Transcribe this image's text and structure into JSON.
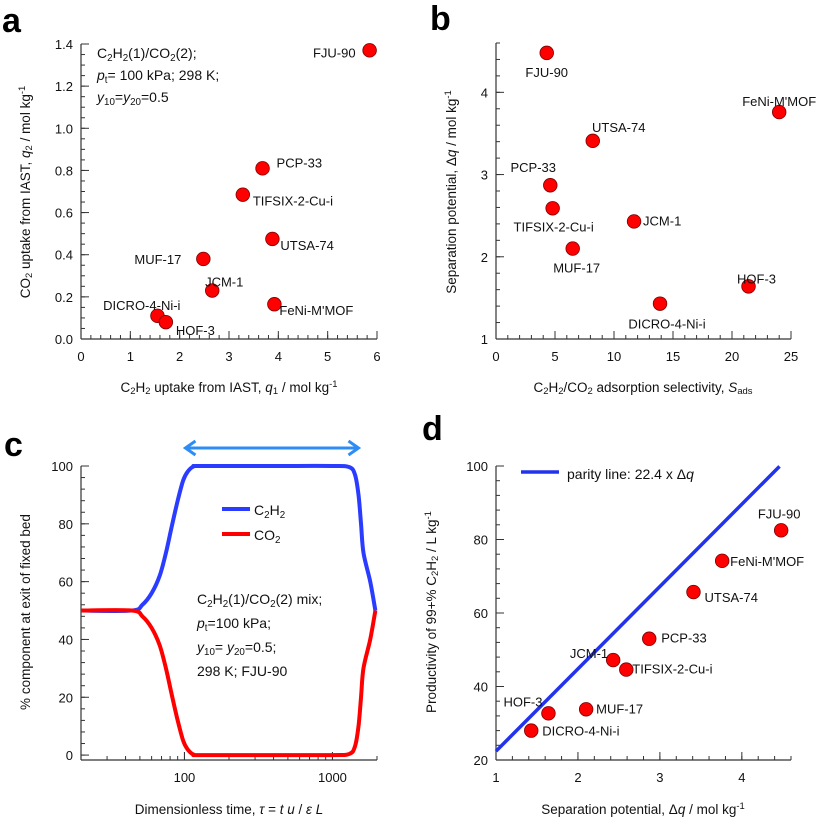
{
  "colors": {
    "point": "#ff0000",
    "point_stroke": "#7a0000",
    "c2h2": "#2a3cff",
    "co2": "#ff0000",
    "arrow": "#2d8cf5",
    "parity": "#2233ee"
  },
  "chart_data": [
    {
      "panel": "a",
      "type": "scatter",
      "xlabel": [
        [
          "C",
          ""
        ],
        [
          "2",
          "sub"
        ],
        [
          "H",
          ""
        ],
        [
          "2",
          "sub"
        ],
        [
          " uptake from IAST, ",
          ""
        ],
        [
          "q",
          "i"
        ],
        [
          "1",
          "sub"
        ],
        [
          " / mol kg",
          ""
        ],
        [
          "-1",
          "sup"
        ]
      ],
      "ylabel": [
        [
          "CO",
          ""
        ],
        [
          "2",
          "sub"
        ],
        [
          " uptake from IAST, ",
          ""
        ],
        [
          "q",
          "i"
        ],
        [
          "2",
          "sub"
        ],
        [
          " / mol kg",
          ""
        ],
        [
          "-1",
          "sup"
        ]
      ],
      "xlim": [
        0,
        6
      ],
      "ylim": [
        0,
        1.4
      ],
      "xticks": [
        0,
        1,
        2,
        3,
        4,
        5,
        6
      ],
      "xtick_labels": [
        "0",
        "1",
        "2",
        "3",
        "4",
        "5",
        "6"
      ],
      "xminor": 0.2,
      "yticks": [
        0,
        0.2,
        0.4,
        0.6,
        0.8,
        1.0,
        1.2,
        1.4
      ],
      "ytick_labels": [
        "0.0",
        "0.2",
        "0.4",
        "0.6",
        "0.8",
        "1.0",
        "1.2",
        "1.4"
      ],
      "yminor": 0.05,
      "annotation": [
        [
          [
            "C",
            ""
          ],
          [
            "2",
            "sub"
          ],
          [
            "H",
            ""
          ],
          [
            "2",
            "sub"
          ],
          [
            "(1)/CO",
            ""
          ],
          [
            "2",
            "sub"
          ],
          [
            "(2);",
            ""
          ]
        ],
        [
          [
            " ",
            ""
          ],
          [
            "p",
            "i"
          ],
          [
            "t",
            "sub"
          ],
          [
            "= 100 kPa;  298 K;",
            ""
          ]
        ],
        [
          [
            "y",
            "i"
          ],
          [
            "10",
            "sub"
          ],
          [
            "=",
            ""
          ],
          [
            "y",
            "i"
          ],
          [
            "20",
            "sub"
          ],
          [
            "=0.5",
            ""
          ]
        ]
      ],
      "points": [
        {
          "label": "FJU-90",
          "x": 5.85,
          "y": 1.37
        },
        {
          "label": "PCP-33",
          "x": 3.68,
          "y": 0.81
        },
        {
          "label": "TIFSIX-2-Cu-i",
          "x": 3.28,
          "y": 0.685
        },
        {
          "label": "UTSA-74",
          "x": 3.88,
          "y": 0.475
        },
        {
          "label": "MUF-17",
          "x": 2.48,
          "y": 0.38
        },
        {
          "label": "JCM-1",
          "x": 2.66,
          "y": 0.23
        },
        {
          "label": "FeNi-M'MOF",
          "x": 3.92,
          "y": 0.165
        },
        {
          "label": "DICRO-4-Ni-i",
          "x": 1.55,
          "y": 0.11
        },
        {
          "label": "HOF-3",
          "x": 1.72,
          "y": 0.08
        }
      ]
    },
    {
      "panel": "b",
      "type": "scatter",
      "xlabel": [
        [
          "C",
          ""
        ],
        [
          "2",
          "sub"
        ],
        [
          "H",
          ""
        ],
        [
          "2",
          "sub"
        ],
        [
          "/CO",
          ""
        ],
        [
          "2",
          "sub"
        ],
        [
          " adsorption selectivity, ",
          ""
        ],
        [
          "S",
          "i"
        ],
        [
          "ads",
          "sub"
        ]
      ],
      "ylabel": [
        [
          "Separation potential, Δ",
          ""
        ],
        [
          "q",
          "i"
        ],
        [
          " / mol kg",
          ""
        ],
        [
          "-1",
          "sup"
        ]
      ],
      "xlim": [
        0,
        25
      ],
      "ylim": [
        1,
        4.6
      ],
      "xticks": [
        0,
        5,
        10,
        15,
        20,
        25
      ],
      "xtick_labels": [
        "0",
        "5",
        "10",
        "15",
        "20",
        "25"
      ],
      "xminor": 1,
      "yticks": [
        1,
        2,
        3,
        4
      ],
      "ytick_labels": [
        "1",
        "2",
        "3",
        "4"
      ],
      "yminor": 0.2,
      "points": [
        {
          "label": "FJU-90",
          "x": 4.3,
          "y": 4.48
        },
        {
          "label": "FeNi-M'MOF",
          "x": 24.0,
          "y": 3.76
        },
        {
          "label": "UTSA-74",
          "x": 8.2,
          "y": 3.41
        },
        {
          "label": "PCP-33",
          "x": 4.6,
          "y": 2.87
        },
        {
          "label": "TIFSIX-2-Cu-i",
          "x": 4.8,
          "y": 2.59
        },
        {
          "label": "JCM-1",
          "x": 11.7,
          "y": 2.43
        },
        {
          "label": "MUF-17",
          "x": 6.5,
          "y": 2.1
        },
        {
          "label": "HOF-3",
          "x": 21.4,
          "y": 1.64
        },
        {
          "label": "DICRO-4-Ni-i",
          "x": 13.9,
          "y": 1.43
        }
      ]
    },
    {
      "panel": "c",
      "type": "line",
      "xscale": "log",
      "xlabel": [
        [
          "Dimensionless time, ",
          ""
        ],
        [
          "τ",
          "i"
        ],
        [
          " = ",
          ""
        ],
        [
          "t u",
          "i"
        ],
        [
          " / ",
          ""
        ],
        [
          "ε L",
          "i"
        ]
      ],
      "ylabel": [
        [
          "% component at exit of fixed bed",
          ""
        ]
      ],
      "xlim": [
        20,
        2000
      ],
      "ylim": [
        -1.7,
        100
      ],
      "xticks": [
        100,
        1000
      ],
      "xtick_labels": [
        "100",
        "1000"
      ],
      "yticks": [
        0,
        20,
        40,
        60,
        80,
        100
      ],
      "ytick_labels": [
        "0",
        "20",
        "40",
        "60",
        "80",
        "100"
      ],
      "yminor": 4,
      "legend": [
        "C2H2",
        "CO2"
      ],
      "legend_rich": [
        [
          [
            "C",
            ""
          ],
          [
            "2",
            "sub"
          ],
          [
            "H",
            ""
          ],
          [
            "2",
            "sub"
          ]
        ],
        [
          [
            "CO",
            ""
          ],
          [
            "2",
            "sub"
          ]
        ]
      ],
      "annotation": [
        [
          [
            "C",
            ""
          ],
          [
            "2",
            "sub"
          ],
          [
            "H",
            ""
          ],
          [
            "2",
            "sub"
          ],
          [
            "(1)/CO",
            ""
          ],
          [
            "2",
            "sub"
          ],
          [
            "(2) mix;",
            ""
          ]
        ],
        [
          [
            "p",
            "i"
          ],
          [
            "t",
            "sub"
          ],
          [
            "=100 kPa;",
            ""
          ]
        ],
        [
          [
            "y",
            "i"
          ],
          [
            "10",
            "sub"
          ],
          [
            "= ",
            ""
          ],
          [
            "y",
            "i"
          ],
          [
            "20",
            "sub"
          ],
          [
            "=0.5;",
            ""
          ]
        ],
        [
          [
            "298 K; FJU-90",
            ""
          ]
        ]
      ],
      "productive_interval": [
        100,
        1500
      ],
      "series": [
        {
          "name": "C2H2",
          "x": [
            20,
            44,
            52,
            60,
            68,
            75,
            82,
            90,
            98,
            105,
            115,
            130,
            400,
            1000,
            1300,
            1420,
            1500,
            1560,
            1620,
            1800,
            1950
          ],
          "y": [
            50,
            50,
            52,
            56,
            62,
            70,
            79,
            88,
            95,
            98,
            99.8,
            100,
            100,
            100,
            99.6,
            97,
            90,
            80,
            70,
            60,
            50
          ]
        },
        {
          "name": "CO2",
          "x": [
            20,
            44,
            52,
            60,
            68,
            75,
            82,
            90,
            98,
            105,
            115,
            130,
            400,
            1000,
            1300,
            1420,
            1500,
            1560,
            1620,
            1800,
            1950
          ],
          "y": [
            50,
            50,
            48,
            44,
            38,
            30,
            21,
            12,
            5,
            2,
            0.2,
            0,
            0,
            0,
            0.4,
            3,
            10,
            20,
            30,
            40,
            50
          ]
        }
      ]
    },
    {
      "panel": "d",
      "type": "scatter",
      "xlabel": [
        [
          "Separation potential, Δ",
          ""
        ],
        [
          "q",
          "i"
        ],
        [
          " / mol kg",
          ""
        ],
        [
          "-1",
          "sup"
        ]
      ],
      "ylabel": [
        [
          "Productivity of 99+% C",
          ""
        ],
        [
          "2",
          "sub"
        ],
        [
          "H",
          ""
        ],
        [
          "2",
          "sub"
        ],
        [
          " / L kg",
          ""
        ],
        [
          "-1",
          "sup"
        ]
      ],
      "xlim": [
        1,
        4.6
      ],
      "ylim": [
        20,
        100
      ],
      "xticks": [
        1,
        2,
        3,
        4
      ],
      "xtick_labels": [
        "1",
        "2",
        "3",
        "4"
      ],
      "xminor": 0.2,
      "yticks": [
        20,
        40,
        60,
        80,
        100
      ],
      "ytick_labels": [
        "20",
        "40",
        "60",
        "80",
        "100"
      ],
      "yminor": 4,
      "parity": {
        "slope": 22.4,
        "x": [
          1,
          4.46
        ],
        "label": [
          [
            "parity line: 22.4 x Δ",
            ""
          ],
          [
            "q",
            "i"
          ]
        ]
      },
      "points": [
        {
          "label": "FJU-90",
          "x": 4.48,
          "y": 82.5
        },
        {
          "label": "FeNi-M'MOF",
          "x": 3.76,
          "y": 74.2
        },
        {
          "label": "UTSA-74",
          "x": 3.41,
          "y": 65.7
        },
        {
          "label": "PCP-33",
          "x": 2.87,
          "y": 53.0
        },
        {
          "label": "JCM-1",
          "x": 2.43,
          "y": 47.2
        },
        {
          "label": "TIFSIX-2-Cu-i",
          "x": 2.59,
          "y": 44.6
        },
        {
          "label": "MUF-17",
          "x": 2.1,
          "y": 33.8
        },
        {
          "label": "HOF-3",
          "x": 1.64,
          "y": 32.7
        },
        {
          "label": "DICRO-4-Ni-i",
          "x": 1.43,
          "y": 28.0
        }
      ]
    }
  ]
}
